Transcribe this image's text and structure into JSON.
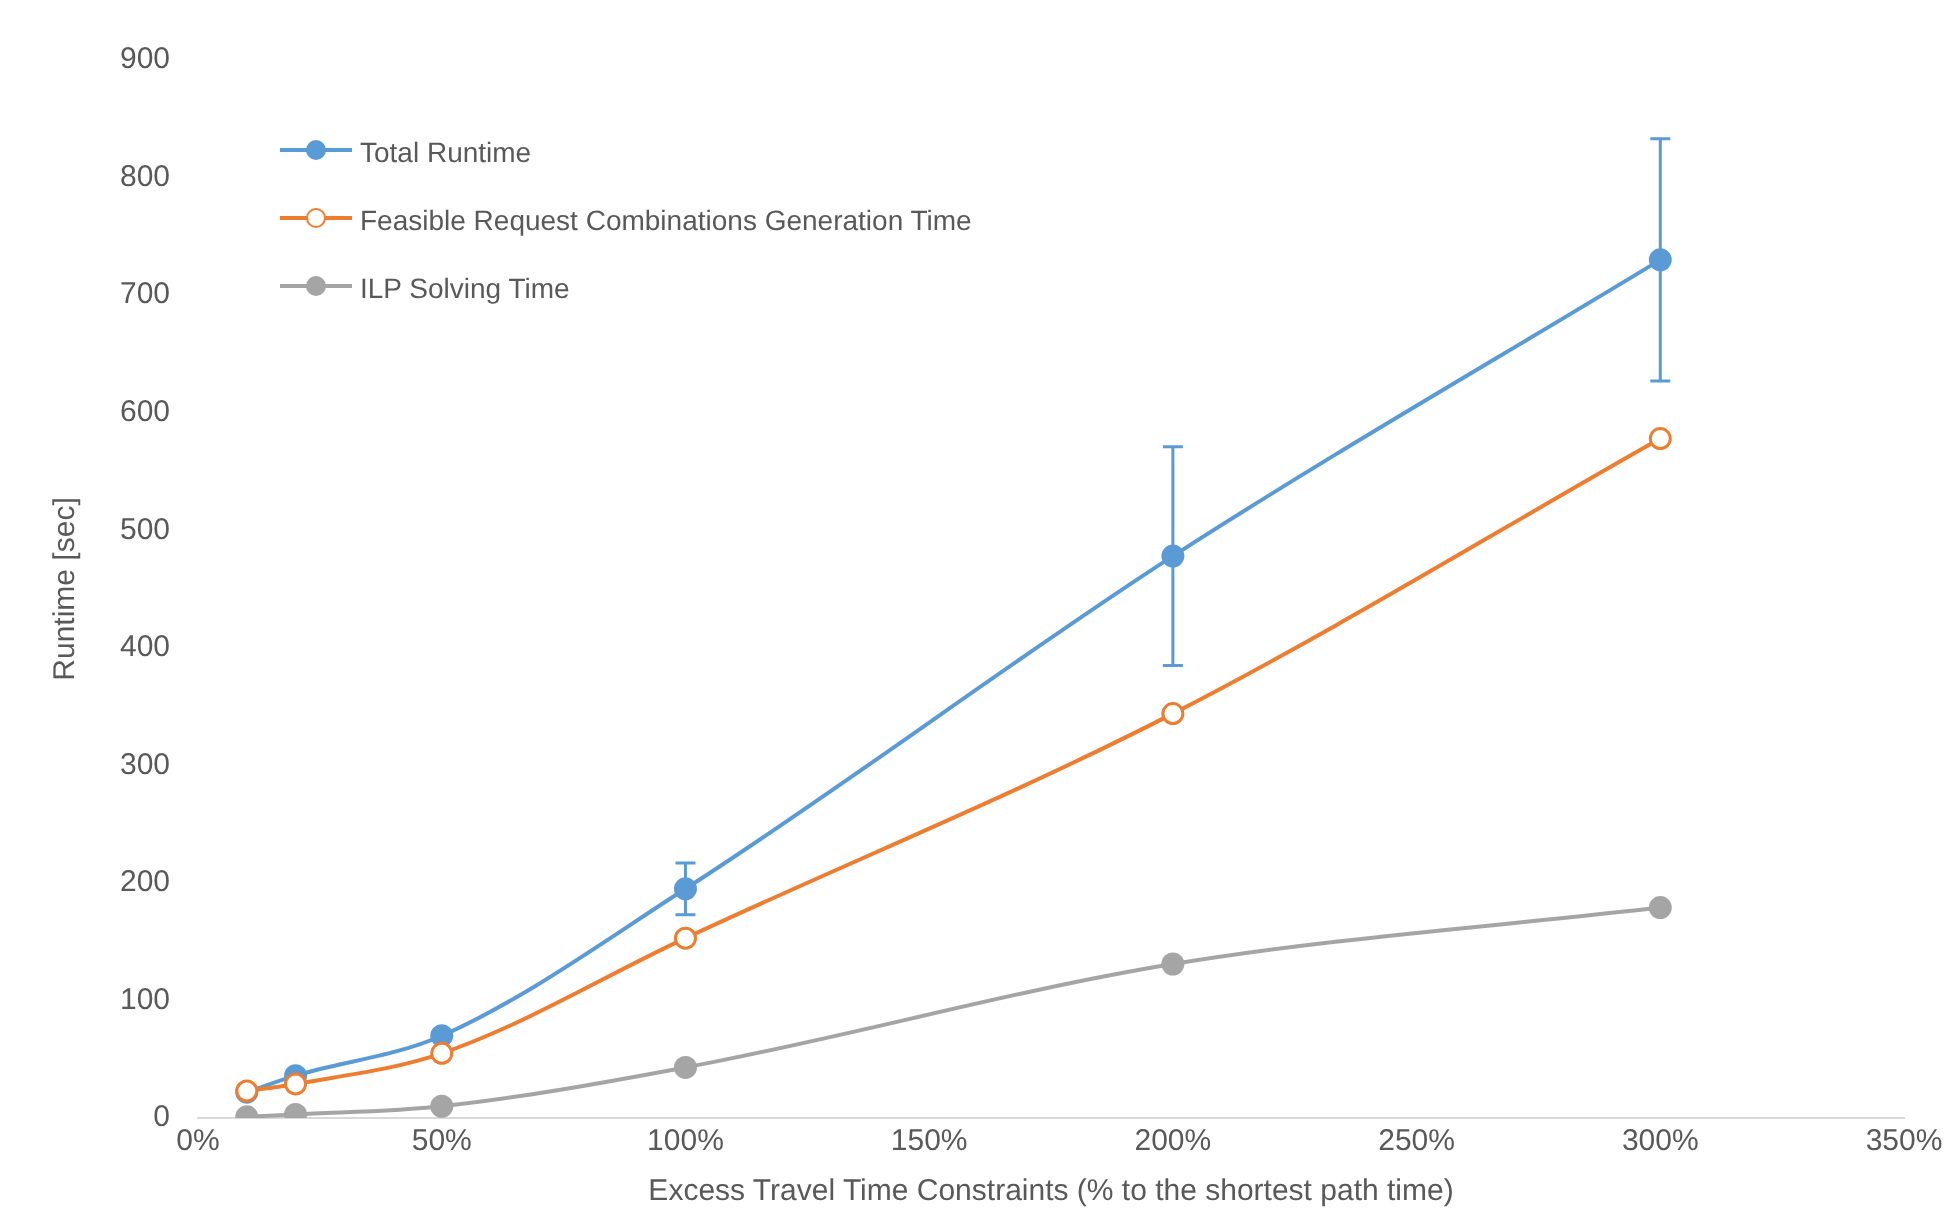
{
  "chart_data": {
    "type": "line",
    "xlabel": "Excess Travel Time Constraints (% to the shortest path time)",
    "ylabel": "Runtime [sec]",
    "x": [
      10,
      20,
      50,
      100,
      200,
      300
    ],
    "series": [
      {
        "name": "Total Runtime",
        "color": "#5b9bd5",
        "values": [
          22,
          36,
          70,
          195,
          478,
          730
        ],
        "errors": [
          null,
          null,
          null,
          22,
          93,
          103
        ]
      },
      {
        "name": "Feasible Request Combinations Generation Time",
        "color": "#ed7d31",
        "values": [
          23,
          29,
          55,
          153,
          344,
          578
        ]
      },
      {
        "name": "ILP Solving Time",
        "color": "#a5a5a5",
        "values": [
          1,
          3,
          10,
          43,
          131,
          179
        ]
      }
    ],
    "xlim": [
      0,
      350
    ],
    "xticks": [
      {
        "value": 0,
        "label": "0%"
      },
      {
        "value": 50,
        "label": "50%"
      },
      {
        "value": 100,
        "label": "100%"
      },
      {
        "value": 150,
        "label": "150%"
      },
      {
        "value": 200,
        "label": "200%"
      },
      {
        "value": 250,
        "label": "250%"
      },
      {
        "value": 300,
        "label": "300%"
      },
      {
        "value": 350,
        "label": "350%"
      }
    ],
    "ylim": [
      0,
      900
    ],
    "yticks": [
      0,
      100,
      200,
      300,
      400,
      500,
      600,
      700,
      800,
      900
    ],
    "grid": false,
    "legend": "top left",
    "marker": "circle",
    "line_style": "solid"
  }
}
